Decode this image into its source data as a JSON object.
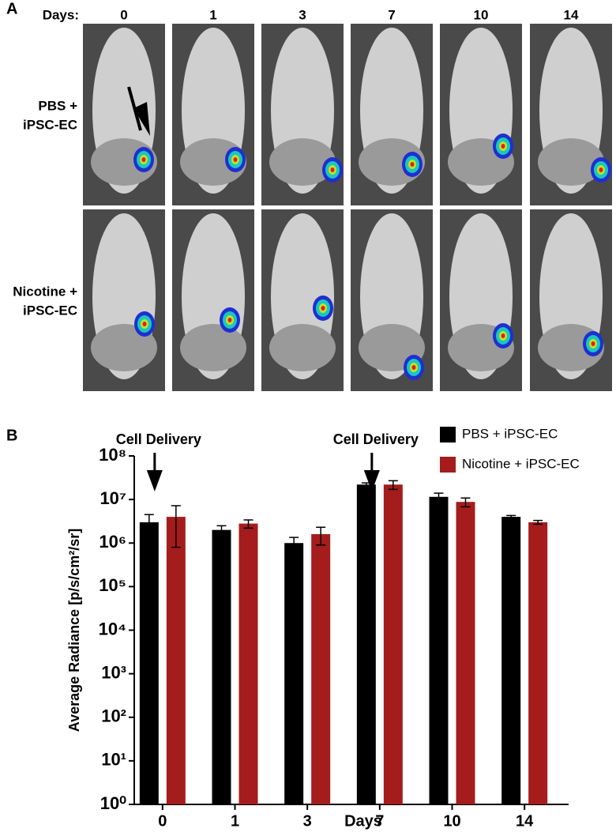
{
  "panel_a": {
    "label": "A",
    "days_label": "Days:",
    "days": [
      "0",
      "1",
      "3",
      "7",
      "10",
      "14"
    ],
    "rows": [
      [
        "PBS +",
        "iPSC-EC"
      ],
      [
        "Nicotine +",
        "iPSC-EC"
      ]
    ]
  },
  "panel_b": {
    "label": "B"
  },
  "chart_data": {
    "type": "bar",
    "log_scale": true,
    "categories": [
      "0",
      "1",
      "3",
      "7",
      "10",
      "14"
    ],
    "series": [
      {
        "name": "PBS + iPSC-EC",
        "color": "#000000",
        "values": [
          3000000,
          2000000,
          1000000,
          22000000,
          11500000,
          4000000
        ],
        "errors": [
          1500000,
          500000,
          350000,
          2000000,
          2500000,
          300000
        ]
      },
      {
        "name": "Nicotine + iPSC-EC",
        "color": "#a51c1c",
        "values": [
          4000000,
          2800000,
          1600000,
          22000000,
          8800000,
          3000000
        ],
        "errors": [
          3200000,
          600000,
          700000,
          5000000,
          2000000,
          300000
        ]
      }
    ],
    "ylim": [
      1,
      100000000
    ],
    "yticks": [
      {
        "value": 1,
        "label": "10⁰"
      },
      {
        "value": 10,
        "label": "10¹"
      },
      {
        "value": 100,
        "label": "10²"
      },
      {
        "value": 1000,
        "label": "10³"
      },
      {
        "value": 10000,
        "label": "10⁴"
      },
      {
        "value": 100000,
        "label": "10⁵"
      },
      {
        "value": 1000000,
        "label": "10⁶"
      },
      {
        "value": 10000000,
        "label": "10⁷"
      },
      {
        "value": 100000000,
        "label": "10⁸"
      }
    ],
    "y_label": "Average Radiance [p/s/cm²/sr]",
    "x_label": "Days",
    "annotations": [
      "Cell Delivery",
      "Cell Delivery"
    ],
    "legend": "top-right"
  }
}
